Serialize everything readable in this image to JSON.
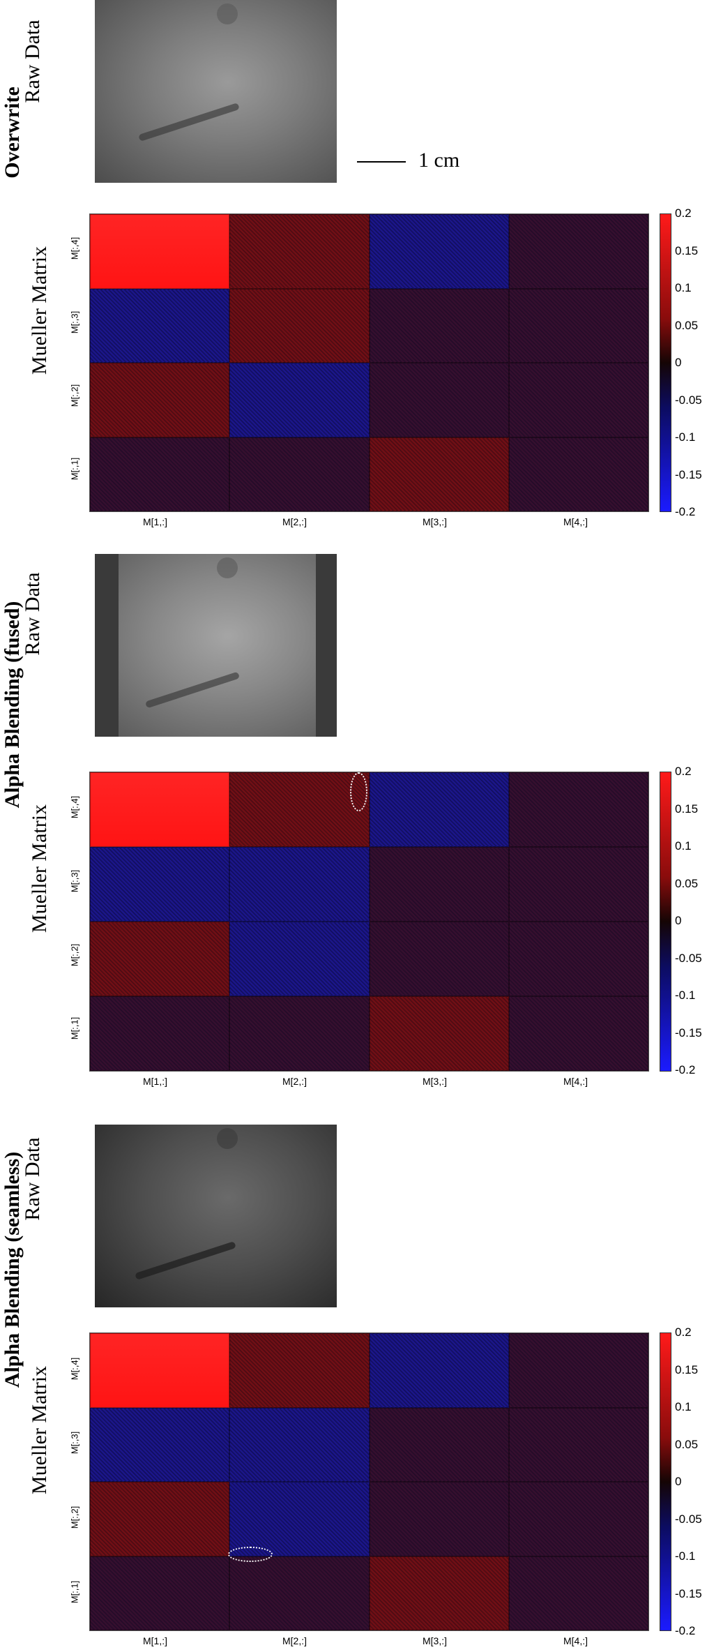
{
  "sections": [
    {
      "title": "Overwrite",
      "raw_label": "Raw Data",
      "matrix_label": "Mueller Matrix",
      "show_scale": true,
      "side_bars": false
    },
    {
      "title": "Alpha Blending (fused)",
      "raw_label": "Raw Data",
      "matrix_label": "Mueller Matrix",
      "show_scale": false,
      "side_bars": true
    },
    {
      "title": "Alpha Blending (seamless)",
      "raw_label": "Raw Data",
      "matrix_label": "Mueller Matrix",
      "show_scale": false,
      "side_bars": false
    }
  ],
  "scale_bar_label": "1 cm",
  "x_ticks": [
    "M[1,:]",
    "M[2,:]",
    "M[3,:]",
    "M[4,:]"
  ],
  "y_ticks": [
    "M[:,4]",
    "M[:,3]",
    "M[:,2]",
    "M[:,1]"
  ],
  "colorbar_ticks": [
    "0.2",
    "0.15",
    "0.1",
    "0.05",
    "0",
    "-0.05",
    "-0.1",
    "-0.15",
    "-0.2"
  ],
  "colors": {
    "positive_max": "#ff1a1a",
    "zero": "#150505",
    "negative_max": "#1b1bff"
  },
  "cell_signs": [
    [
      [
        "high",
        "neg",
        "pos",
        "dark"
      ],
      [
        "pos",
        "pos",
        "neg",
        "dark"
      ],
      [
        "neg",
        "dark",
        "dark",
        "pos"
      ],
      [
        "dark",
        "dark",
        "dark",
        "dark"
      ]
    ],
    [
      [
        "high",
        "neg",
        "pos",
        "dark"
      ],
      [
        "pos",
        "neg",
        "neg",
        "dark"
      ],
      [
        "neg",
        "dark",
        "dark",
        "pos"
      ],
      [
        "dark",
        "dark",
        "dark",
        "dark"
      ]
    ],
    [
      [
        "high",
        "neg",
        "pos",
        "dark"
      ],
      [
        "pos",
        "neg",
        "neg",
        "dark"
      ],
      [
        "neg",
        "dark",
        "dark",
        "pos"
      ],
      [
        "dark",
        "dark",
        "dark",
        "dark"
      ]
    ]
  ]
}
